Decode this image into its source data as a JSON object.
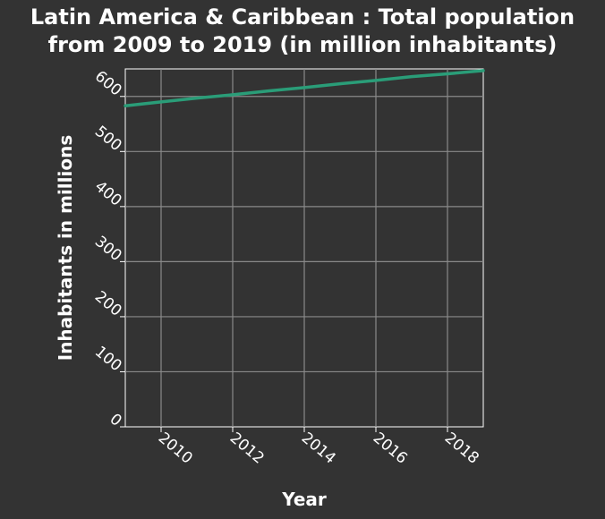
{
  "chart_data": {
    "type": "line",
    "title_line1": "Latin America & Caribbean : Total population",
    "title_line2": "from 2009 to 2019 (in million inhabitants)",
    "xlabel": "Year",
    "ylabel": "Inhabitants in millions",
    "xlim": [
      2009,
      2019
    ],
    "ylim": [
      0,
      650
    ],
    "xticks": [
      2010,
      2012,
      2014,
      2016,
      2018
    ],
    "yticks": [
      0,
      100,
      200,
      300,
      400,
      500,
      600
    ],
    "grid": true,
    "line_color": "#2a9d78",
    "grid_color": "#8a8a8a",
    "background": "#333333",
    "series": [
      {
        "x": [
          2009,
          2010,
          2011,
          2012,
          2013,
          2014,
          2015,
          2016,
          2017,
          2018,
          2019
        ],
        "values": [
          583,
          590,
          597,
          603,
          610,
          616,
          623,
          629,
          636,
          641,
          647
        ]
      }
    ]
  }
}
